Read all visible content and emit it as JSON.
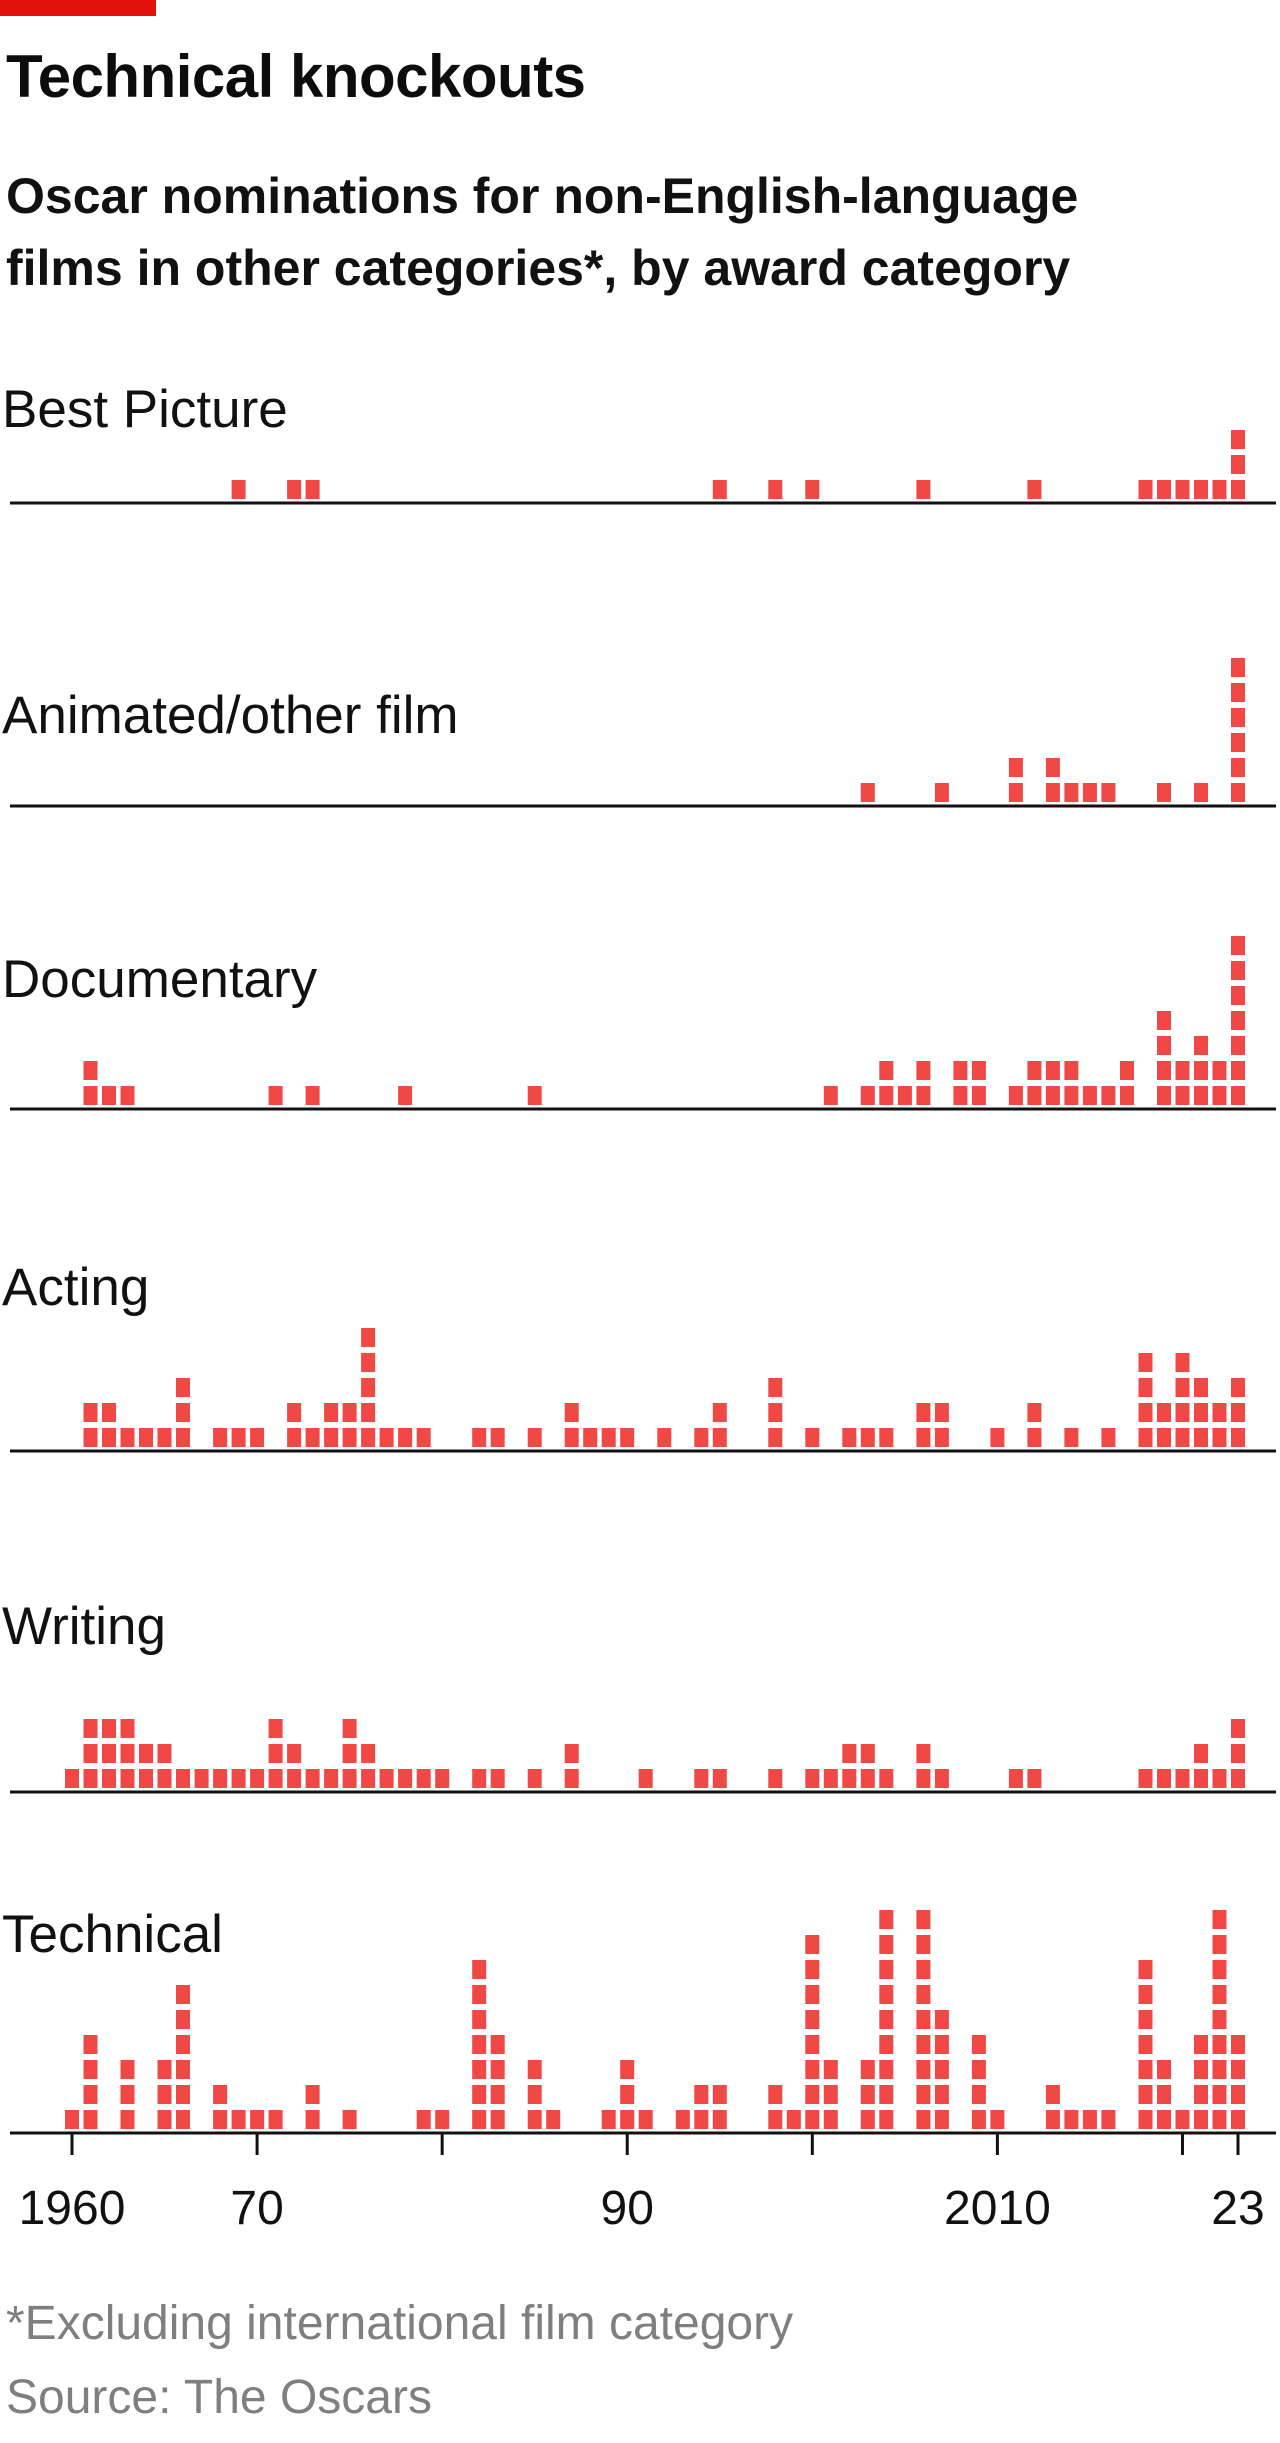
{
  "header": {
    "title": "Technical knockouts",
    "subtitle": "Oscar nominations for non-English-language films in other categories*, by award category"
  },
  "footer": {
    "footnote": "*Excluding international film category",
    "source": "Source: The Oscars"
  },
  "colors": {
    "accent": "#e3120b",
    "marker": "#f04844",
    "axis": "#111111"
  },
  "chart_data": {
    "type": "bar",
    "unit": "nominations",
    "x_ticks": [
      1960,
      1970,
      1990,
      2010,
      2023
    ],
    "x_tick_labels": [
      "1960",
      "70",
      "90",
      "2010",
      "23"
    ],
    "xlim": [
      1960,
      2023
    ],
    "panels": [
      {
        "name": "Best Picture",
        "data": [
          [
            1969,
            1
          ],
          [
            1972,
            1
          ],
          [
            1973,
            1
          ],
          [
            1995,
            1
          ],
          [
            1998,
            1
          ],
          [
            2000,
            1
          ],
          [
            2006,
            1
          ],
          [
            2012,
            1
          ],
          [
            2018,
            1
          ],
          [
            2019,
            1
          ],
          [
            2020,
            1
          ],
          [
            2021,
            1
          ],
          [
            2022,
            1
          ],
          [
            2023,
            3
          ]
        ]
      },
      {
        "name": "Animated/other film",
        "data": [
          [
            2003,
            1
          ],
          [
            2007,
            1
          ],
          [
            2011,
            2
          ],
          [
            2013,
            2
          ],
          [
            2014,
            1
          ],
          [
            2015,
            1
          ],
          [
            2016,
            1
          ],
          [
            2019,
            1
          ],
          [
            2021,
            1
          ],
          [
            2023,
            6
          ]
        ]
      },
      {
        "name": "Documentary",
        "data": [
          [
            1961,
            2
          ],
          [
            1962,
            1
          ],
          [
            1963,
            1
          ],
          [
            1971,
            1
          ],
          [
            1973,
            1
          ],
          [
            1978,
            1
          ],
          [
            1985,
            1
          ],
          [
            2001,
            1
          ],
          [
            2003,
            1
          ],
          [
            2004,
            2
          ],
          [
            2005,
            1
          ],
          [
            2006,
            2
          ],
          [
            2008,
            2
          ],
          [
            2009,
            2
          ],
          [
            2011,
            1
          ],
          [
            2012,
            2
          ],
          [
            2013,
            2
          ],
          [
            2014,
            2
          ],
          [
            2015,
            1
          ],
          [
            2016,
            1
          ],
          [
            2017,
            2
          ],
          [
            2019,
            4
          ],
          [
            2020,
            2
          ],
          [
            2021,
            3
          ],
          [
            2022,
            2
          ],
          [
            2023,
            7
          ]
        ]
      },
      {
        "name": "Acting",
        "data": [
          [
            1961,
            2
          ],
          [
            1962,
            2
          ],
          [
            1963,
            1
          ],
          [
            1964,
            1
          ],
          [
            1965,
            1
          ],
          [
            1966,
            3
          ],
          [
            1968,
            1
          ],
          [
            1969,
            1
          ],
          [
            1970,
            1
          ],
          [
            1972,
            2
          ],
          [
            1973,
            1
          ],
          [
            1974,
            2
          ],
          [
            1975,
            2
          ],
          [
            1976,
            5
          ],
          [
            1977,
            1
          ],
          [
            1978,
            1
          ],
          [
            1979,
            1
          ],
          [
            1982,
            1
          ],
          [
            1983,
            1
          ],
          [
            1985,
            1
          ],
          [
            1987,
            2
          ],
          [
            1988,
            1
          ],
          [
            1989,
            1
          ],
          [
            1990,
            1
          ],
          [
            1992,
            1
          ],
          [
            1994,
            1
          ],
          [
            1995,
            2
          ],
          [
            1998,
            3
          ],
          [
            2000,
            1
          ],
          [
            2002,
            1
          ],
          [
            2003,
            1
          ],
          [
            2004,
            1
          ],
          [
            2006,
            2
          ],
          [
            2007,
            2
          ],
          [
            2010,
            1
          ],
          [
            2012,
            2
          ],
          [
            2014,
            1
          ],
          [
            2016,
            1
          ],
          [
            2018,
            4
          ],
          [
            2019,
            2
          ],
          [
            2020,
            4
          ],
          [
            2021,
            3
          ],
          [
            2022,
            2
          ],
          [
            2023,
            3
          ]
        ]
      },
      {
        "name": "Writing",
        "data": [
          [
            1960,
            1
          ],
          [
            1961,
            3
          ],
          [
            1962,
            3
          ],
          [
            1963,
            3
          ],
          [
            1964,
            2
          ],
          [
            1965,
            2
          ],
          [
            1966,
            1
          ],
          [
            1967,
            1
          ],
          [
            1968,
            1
          ],
          [
            1969,
            1
          ],
          [
            1970,
            1
          ],
          [
            1971,
            3
          ],
          [
            1972,
            2
          ],
          [
            1973,
            1
          ],
          [
            1974,
            1
          ],
          [
            1975,
            3
          ],
          [
            1976,
            2
          ],
          [
            1977,
            1
          ],
          [
            1978,
            1
          ],
          [
            1979,
            1
          ],
          [
            1980,
            1
          ],
          [
            1982,
            1
          ],
          [
            1983,
            1
          ],
          [
            1985,
            1
          ],
          [
            1987,
            2
          ],
          [
            1991,
            1
          ],
          [
            1994,
            1
          ],
          [
            1995,
            1
          ],
          [
            1998,
            1
          ],
          [
            2000,
            1
          ],
          [
            2001,
            1
          ],
          [
            2002,
            2
          ],
          [
            2003,
            2
          ],
          [
            2004,
            1
          ],
          [
            2006,
            2
          ],
          [
            2007,
            1
          ],
          [
            2011,
            1
          ],
          [
            2012,
            1
          ],
          [
            2018,
            1
          ],
          [
            2019,
            1
          ],
          [
            2020,
            1
          ],
          [
            2021,
            2
          ],
          [
            2022,
            1
          ],
          [
            2023,
            3
          ]
        ]
      },
      {
        "name": "Technical",
        "data": [
          [
            1960,
            1
          ],
          [
            1961,
            4
          ],
          [
            1963,
            3
          ],
          [
            1965,
            3
          ],
          [
            1966,
            6
          ],
          [
            1968,
            2
          ],
          [
            1969,
            1
          ],
          [
            1970,
            1
          ],
          [
            1971,
            1
          ],
          [
            1973,
            2
          ],
          [
            1975,
            1
          ],
          [
            1979,
            1
          ],
          [
            1980,
            1
          ],
          [
            1982,
            7
          ],
          [
            1983,
            4
          ],
          [
            1985,
            3
          ],
          [
            1986,
            1
          ],
          [
            1989,
            1
          ],
          [
            1990,
            3
          ],
          [
            1991,
            1
          ],
          [
            1993,
            1
          ],
          [
            1994,
            2
          ],
          [
            1995,
            2
          ],
          [
            1998,
            2
          ],
          [
            1999,
            1
          ],
          [
            2000,
            8
          ],
          [
            2001,
            3
          ],
          [
            2003,
            3
          ],
          [
            2004,
            9
          ],
          [
            2006,
            9
          ],
          [
            2007,
            5
          ],
          [
            2009,
            4
          ],
          [
            2010,
            1
          ],
          [
            2013,
            2
          ],
          [
            2014,
            1
          ],
          [
            2015,
            1
          ],
          [
            2016,
            1
          ],
          [
            2018,
            7
          ],
          [
            2019,
            3
          ],
          [
            2020,
            1
          ],
          [
            2021,
            4
          ],
          [
            2022,
            9
          ],
          [
            2023,
            4
          ]
        ]
      }
    ]
  }
}
